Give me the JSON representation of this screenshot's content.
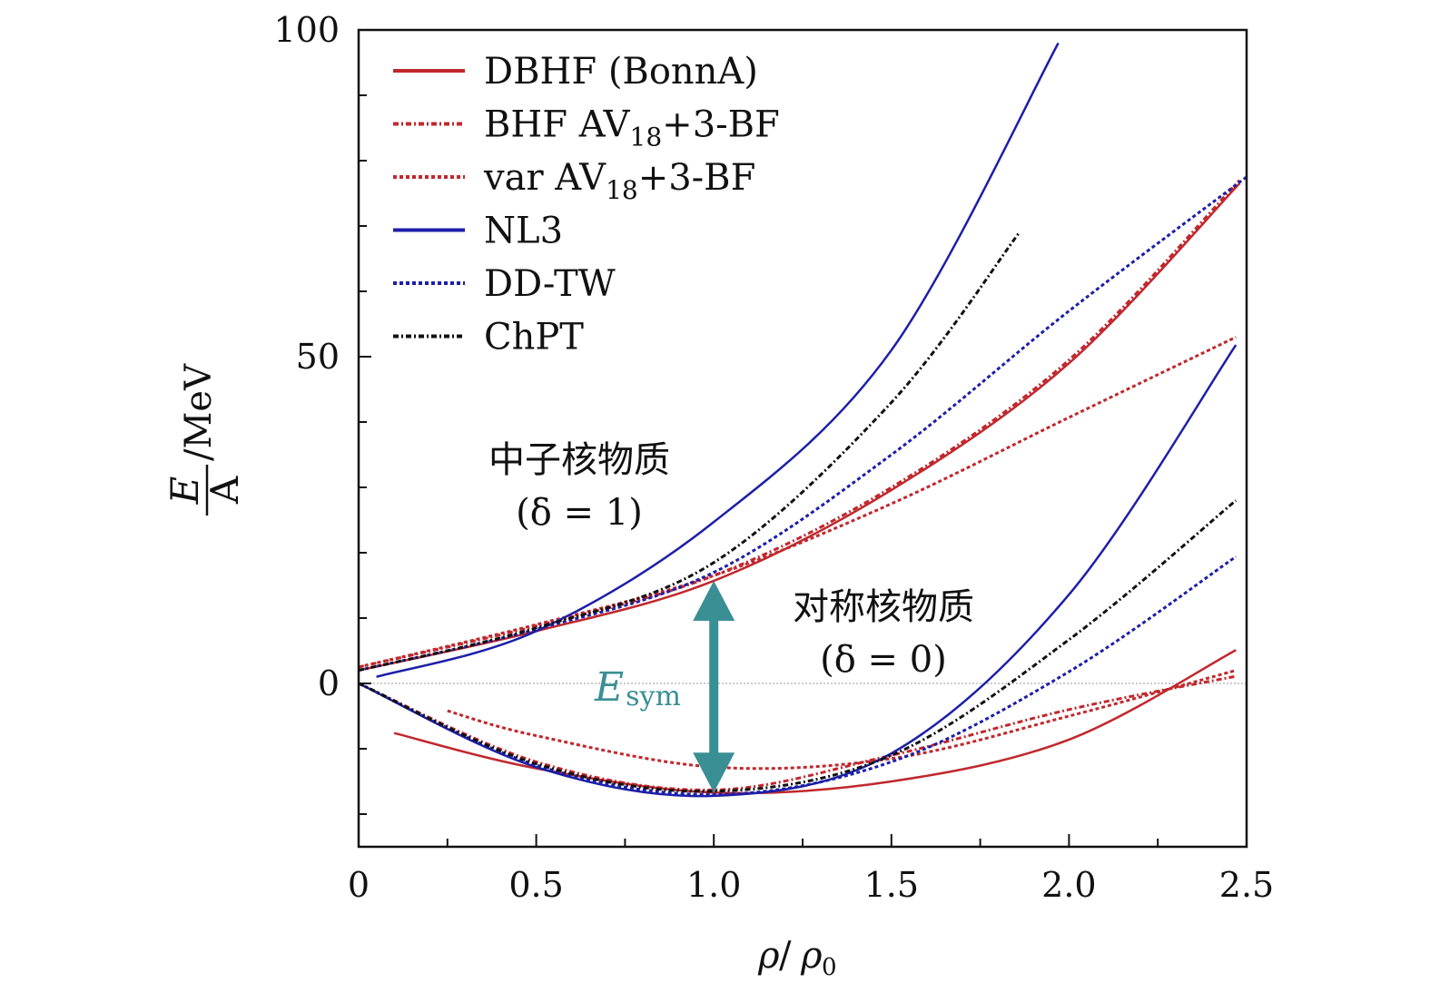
{
  "chart_data": {
    "type": "line",
    "title": "",
    "xlabel": "ρ/ρ0",
    "ylabel": "E/A /MeV",
    "ylabel_parts": {
      "num": "E",
      "den": "A",
      "unit": "/MeV"
    },
    "xlabel_parts": {
      "num": "ρ",
      "den": "ρ",
      "sub": "0"
    },
    "xlim": [
      0,
      2.5
    ],
    "ylim": [
      -25,
      100
    ],
    "xticks": [
      "0",
      "0.5",
      "1.0",
      "1.5",
      "2.0",
      "2.5"
    ],
    "yticks": [
      "0",
      "50",
      "100"
    ],
    "legend_position": "top-left",
    "legend": [
      {
        "key": "dbhf",
        "label": "DBHF (BonnA)",
        "color": "#c0282d",
        "style": "solid"
      },
      {
        "key": "bhf",
        "label": "BHF AV",
        "sub": "18",
        "suffix": "+3-BF",
        "color": "#c0282d",
        "style": "dashdot"
      },
      {
        "key": "var",
        "label": "var AV",
        "sub": "18",
        "suffix": "+3-BF",
        "color": "#c0282d",
        "style": "dotted"
      },
      {
        "key": "nl3",
        "label": "NL3",
        "color": "#1c1fa8",
        "style": "solid"
      },
      {
        "key": "ddtw",
        "label": "DD-TW",
        "color": "#1c1fa8",
        "style": "dotted"
      },
      {
        "key": "chpt",
        "label": "ChPT",
        "color": "#111111",
        "style": "dashdot"
      }
    ],
    "series": [
      {
        "name": "DBHF (BonnA) neutron",
        "key": "dbhf",
        "x": [
          0,
          0.5,
          1.0,
          1.5,
          2.0,
          2.48
        ],
        "y": [
          2,
          8,
          15.7,
          29.6,
          49,
          76.5
        ]
      },
      {
        "name": "BHF AV18+3-BF neutron",
        "key": "bhf",
        "x": [
          0,
          0.5,
          1.0,
          1.5,
          2.0,
          2.48
        ],
        "y": [
          2.5,
          8.8,
          16.5,
          30,
          49.5,
          77
        ]
      },
      {
        "name": "var AV18+3-BF neutron",
        "key": "var",
        "x": [
          0,
          0.5,
          1.0,
          1.5,
          2.0,
          2.47
        ],
        "y": [
          2.5,
          9,
          16.5,
          27.5,
          40.7,
          53
        ]
      },
      {
        "name": "NL3 neutron",
        "key": "nl3",
        "x": [
          0.05,
          0.5,
          1.0,
          1.5,
          1.97
        ],
        "y": [
          1,
          8,
          24.7,
          51,
          98
        ]
      },
      {
        "name": "DD-TW neutron",
        "key": "ddtw",
        "x": [
          0,
          0.5,
          1.0,
          1.5,
          2.0,
          2.5
        ],
        "y": [
          2,
          8.3,
          17,
          35,
          57,
          77.5
        ]
      },
      {
        "name": "ChPT neutron",
        "key": "chpt",
        "x": [
          0,
          0.5,
          1.0,
          1.5,
          1.86
        ],
        "y": [
          2,
          8.5,
          18.5,
          43,
          69
        ]
      },
      {
        "name": "DBHF (BonnA) symmetric",
        "key": "dbhf",
        "x": [
          0.1,
          0.5,
          1.0,
          1.5,
          2.0,
          2.47
        ],
        "y": [
          -7.6,
          -13,
          -16.7,
          -15,
          -8.6,
          5.1
        ]
      },
      {
        "name": "BHF AV18+3-BF symmetric",
        "key": "bhf",
        "x": [
          0,
          0.5,
          1.0,
          1.5,
          2.0,
          2.47
        ],
        "y": [
          0,
          -12,
          -16.3,
          -11,
          -4,
          1.1
        ]
      },
      {
        "name": "var AV18+3-BF symmetric",
        "key": "var",
        "x": [
          0.25,
          0.5,
          1.0,
          1.5,
          2.0,
          2.47
        ],
        "y": [
          -4.2,
          -8,
          -12.8,
          -11.5,
          -5,
          2
        ]
      },
      {
        "name": "NL3 symmetric",
        "key": "nl3",
        "x": [
          0,
          0.5,
          1.0,
          1.5,
          2.0,
          2.47
        ],
        "y": [
          0,
          -12.8,
          -17.2,
          -10.7,
          13.6,
          51.8
        ]
      },
      {
        "name": "DD-TW symmetric",
        "key": "ddtw",
        "x": [
          0,
          0.5,
          1.0,
          1.5,
          2.0,
          2.47
        ],
        "y": [
          0,
          -12.5,
          -17,
          -12,
          1.8,
          19.4
        ]
      },
      {
        "name": "ChPT symmetric",
        "key": "chpt",
        "x": [
          0,
          0.5,
          1.0,
          1.5,
          2.0,
          2.47
        ],
        "y": [
          0,
          -12.3,
          -16.5,
          -11,
          6.7,
          28
        ]
      }
    ],
    "annotations": {
      "neutron_label": "中子核物质",
      "neutron_delta": "(δ = 1)",
      "symmetric_label": "对称核物质",
      "symmetric_delta": "(δ = 0)",
      "esym_main": "E",
      "esym_sub": "sym",
      "esym_color": "#3a8f94",
      "esym_arrow": {
        "x": 1.0,
        "y_from": -16.7,
        "y_to": 15.7
      }
    }
  }
}
